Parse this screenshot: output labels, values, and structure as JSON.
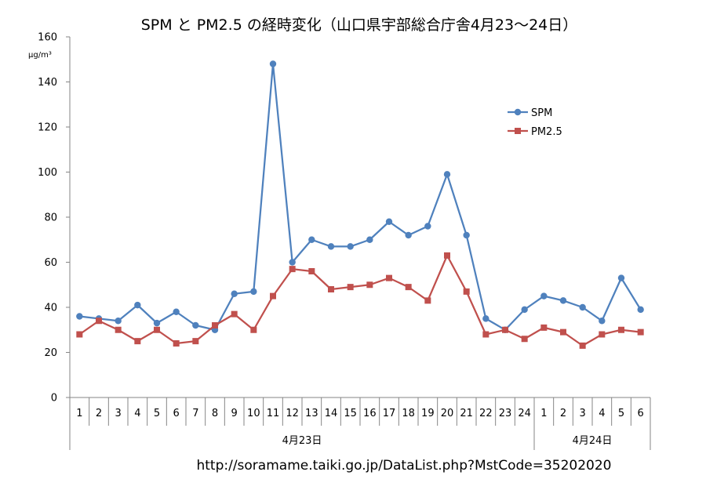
{
  "chart_data": {
    "type": "line",
    "title": "SPM と PM2.5 の経時変化（山口県宇部総合庁舎4月23〜24日）",
    "ylabel": "μg/m³",
    "ylim": [
      0,
      160
    ],
    "yticks": [
      0,
      20,
      40,
      60,
      80,
      100,
      120,
      140,
      160
    ],
    "grid": false,
    "legend_position": "upper-right",
    "categories": [
      "1",
      "2",
      "3",
      "4",
      "5",
      "6",
      "7",
      "8",
      "9",
      "10",
      "11",
      "12",
      "13",
      "14",
      "15",
      "16",
      "17",
      "18",
      "19",
      "20",
      "21",
      "22",
      "23",
      "24",
      "1",
      "2",
      "3",
      "4",
      "5",
      "6"
    ],
    "groups": [
      {
        "label": "4月23日",
        "count": 24
      },
      {
        "label": "4月24日",
        "count": 6
      }
    ],
    "series": [
      {
        "name": "SPM",
        "color": "#4F81BD",
        "marker": "circle",
        "values": [
          36,
          35,
          34,
          41,
          33,
          38,
          32,
          30,
          46,
          47,
          148,
          60,
          70,
          67,
          67,
          70,
          78,
          72,
          76,
          99,
          72,
          35,
          30,
          39,
          45,
          43,
          40,
          34,
          53,
          39
        ]
      },
      {
        "name": "PM2.5",
        "color": "#C0504D",
        "marker": "square",
        "values": [
          28,
          34,
          30,
          25,
          30,
          24,
          25,
          32,
          37,
          30,
          45,
          57,
          56,
          48,
          49,
          50,
          53,
          49,
          43,
          63,
          47,
          28,
          30,
          26,
          31,
          29,
          23,
          28,
          30,
          29
        ]
      }
    ]
  },
  "source_url": "http://soramame.taiki.go.jp/DataList.php?MstCode=35202020"
}
